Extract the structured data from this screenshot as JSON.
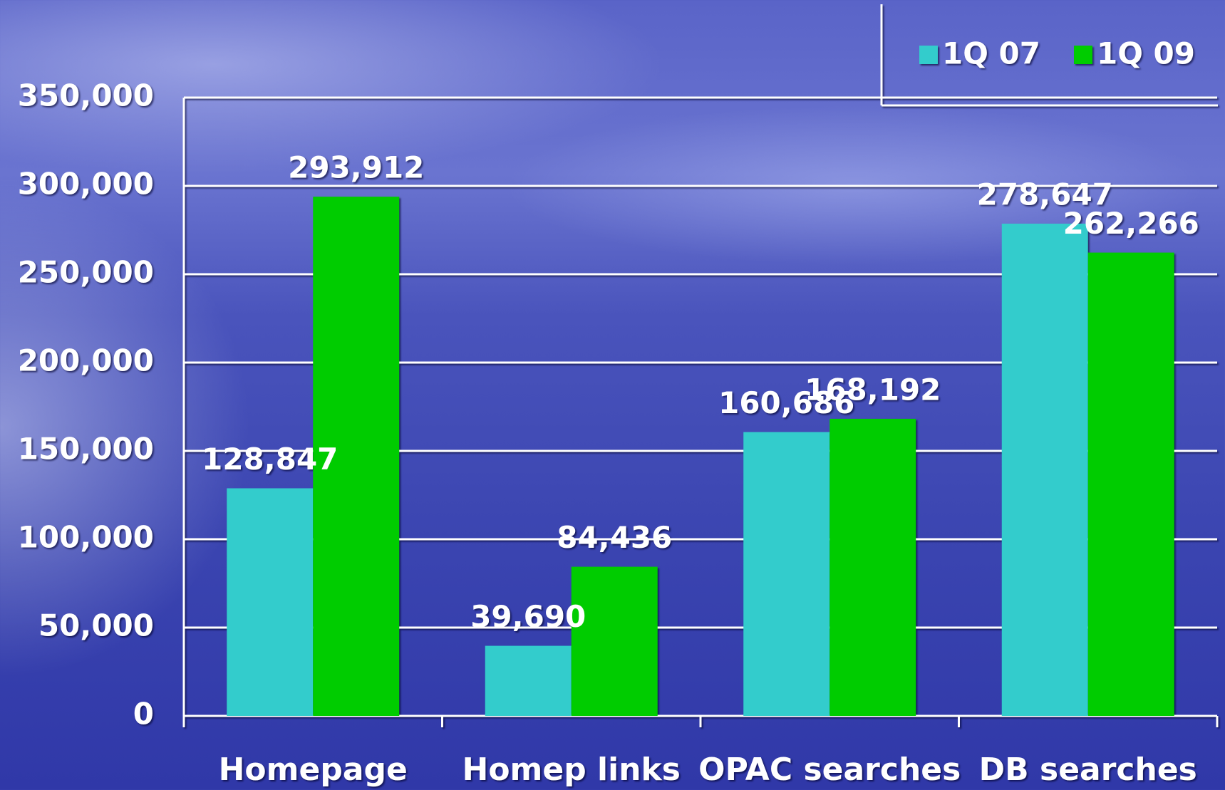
{
  "chart_data": {
    "type": "bar",
    "categories": [
      "Homepage",
      "Homep links",
      "OPAC searches",
      "DB searches"
    ],
    "series": [
      {
        "name": "1Q 07",
        "color": "#33cccc",
        "values": [
          128847,
          39690,
          160686,
          278647
        ],
        "value_labels": [
          "128,847",
          "39,690",
          "160,686",
          "278,647"
        ]
      },
      {
        "name": "1Q 09",
        "color": "#00cc00",
        "values": [
          293912,
          84436,
          168192,
          262266
        ],
        "value_labels": [
          "293,912",
          "84,436",
          "168,192",
          "262,266"
        ]
      }
    ],
    "ylim": [
      0,
      350000
    ],
    "yticks": [
      0,
      {
        "value": 50000,
        "label": "50,000"
      },
      {
        "value": 100000,
        "label": "100,000"
      },
      {
        "value": 150000,
        "label": "150,000"
      },
      {
        "value": 200000,
        "label": "200,000"
      },
      {
        "value": 250000,
        "label": "250,000"
      },
      {
        "value": 300000,
        "label": "300,000"
      },
      {
        "value": 350000,
        "label": "350,000"
      }
    ],
    "grid": true,
    "legend": "top-right"
  }
}
